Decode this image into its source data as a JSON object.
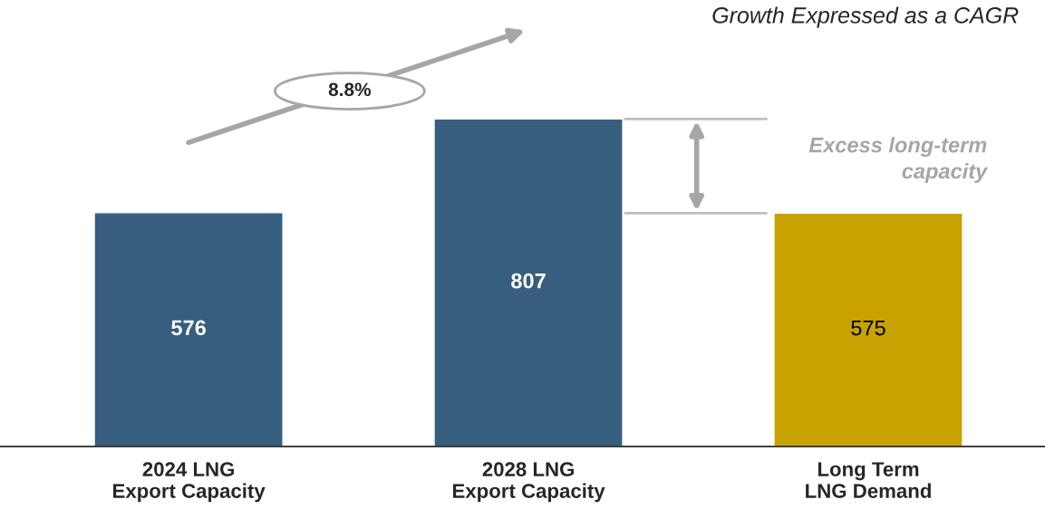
{
  "chart_data": {
    "type": "bar",
    "categories": [
      "2024 LNG\nExport Capacity",
      "2028 LNG\nExport Capacity",
      "Long Term\nLNG Demand"
    ],
    "values": [
      576,
      807,
      575
    ],
    "colors": [
      "#375e7e",
      "#375e7e",
      "#c8a200"
    ],
    "tick_labels": "x",
    "data_labels": true,
    "annotations": [
      "Growth Expressed as a CAGR",
      "8.8%",
      "Excess long-term\ncapacity"
    ]
  }
}
